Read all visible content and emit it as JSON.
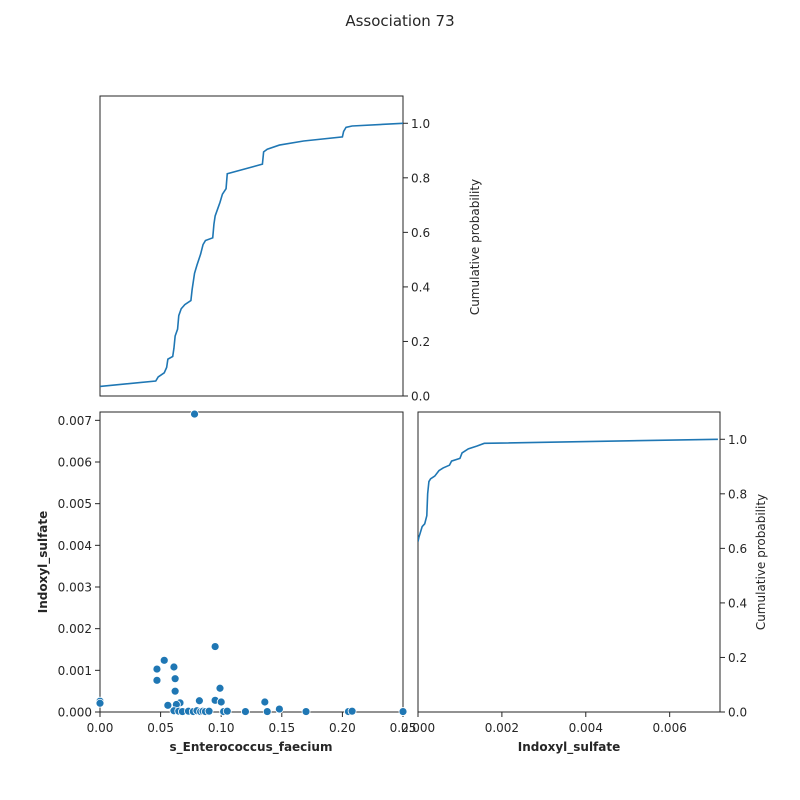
{
  "figure": {
    "title": "Association 73"
  },
  "chart_data": [
    {
      "panel": "top-left",
      "type": "line",
      "description_of_series": "empirical CDF of s_Enterococcus_faecium",
      "xlim": [
        0,
        0.25
      ],
      "ylim": [
        0,
        1.1
      ],
      "x_ticks_shown": false,
      "y_axis_side": "right",
      "ylabel": "Cumulative probability",
      "yticks": [
        0.0,
        0.2,
        0.4,
        0.6,
        0.8,
        1.0
      ],
      "ytick_labels": [
        "0.0",
        "0.2",
        "0.4",
        "0.6",
        "0.8",
        "1.0"
      ],
      "color": "#1f77b4",
      "points": [
        [
          0.0,
          0.035
        ],
        [
          0.046,
          0.055
        ],
        [
          0.048,
          0.07
        ],
        [
          0.053,
          0.085
        ],
        [
          0.055,
          0.105
        ],
        [
          0.056,
          0.135
        ],
        [
          0.06,
          0.145
        ],
        [
          0.061,
          0.175
        ],
        [
          0.062,
          0.22
        ],
        [
          0.064,
          0.245
        ],
        [
          0.065,
          0.295
        ],
        [
          0.067,
          0.32
        ],
        [
          0.07,
          0.335
        ],
        [
          0.075,
          0.35
        ],
        [
          0.076,
          0.39
        ],
        [
          0.078,
          0.45
        ],
        [
          0.08,
          0.48
        ],
        [
          0.083,
          0.52
        ],
        [
          0.085,
          0.555
        ],
        [
          0.087,
          0.57
        ],
        [
          0.093,
          0.58
        ],
        [
          0.094,
          0.63
        ],
        [
          0.095,
          0.66
        ],
        [
          0.097,
          0.685
        ],
        [
          0.099,
          0.71
        ],
        [
          0.101,
          0.74
        ],
        [
          0.104,
          0.76
        ],
        [
          0.105,
          0.815
        ],
        [
          0.134,
          0.85
        ],
        [
          0.135,
          0.895
        ],
        [
          0.138,
          0.905
        ],
        [
          0.148,
          0.92
        ],
        [
          0.168,
          0.935
        ],
        [
          0.2,
          0.95
        ],
        [
          0.201,
          0.97
        ],
        [
          0.203,
          0.985
        ],
        [
          0.208,
          0.99
        ],
        [
          0.25,
          1.0
        ]
      ]
    },
    {
      "panel": "bottom-left",
      "type": "scatter",
      "xlabel": "s_Enterococcus_faecium",
      "ylabel": "Indoxyl_sulfate",
      "xlim": [
        0,
        0.25
      ],
      "ylim": [
        0,
        0.0072
      ],
      "xticks": [
        0.0,
        0.05,
        0.1,
        0.15,
        0.2,
        0.25
      ],
      "xtick_labels": [
        "0.00",
        "0.05",
        "0.10",
        "0.15",
        "0.20",
        "0.25"
      ],
      "yticks": [
        0,
        0.001,
        0.002,
        0.003,
        0.004,
        0.005,
        0.006,
        0.007
      ],
      "ytick_labels": [
        "0.000",
        "0.001",
        "0.002",
        "0.003",
        "0.004",
        "0.005",
        "0.006",
        "0.007"
      ],
      "color": "#1f77b4",
      "points": [
        [
          0.078,
          0.00715
        ],
        [
          0.095,
          0.00157
        ],
        [
          0.053,
          0.00124
        ],
        [
          0.061,
          0.00108
        ],
        [
          0.047,
          0.00103
        ],
        [
          0.062,
          0.0008
        ],
        [
          0.047,
          0.00076
        ],
        [
          0.062,
          0.0005
        ],
        [
          0.099,
          0.00057
        ],
        [
          0.082,
          0.00027
        ],
        [
          0.095,
          0.00028
        ],
        [
          0.1,
          0.00024
        ],
        [
          0.066,
          0.00022
        ],
        [
          0.136,
          0.00024
        ],
        [
          0.0,
          0.00026
        ],
        [
          0.0,
          0.00021
        ],
        [
          0.056,
          0.00016
        ],
        [
          0.063,
          0.00018
        ],
        [
          0.148,
          7e-05
        ],
        [
          0.061,
          3e-05
        ],
        [
          0.065,
          2e-05
        ],
        [
          0.068,
          1e-05
        ],
        [
          0.073,
          2e-05
        ],
        [
          0.077,
          1e-05
        ],
        [
          0.08,
          3e-05
        ],
        [
          0.083,
          1e-05
        ],
        [
          0.085,
          2e-05
        ],
        [
          0.087,
          1e-05
        ],
        [
          0.09,
          2e-05
        ],
        [
          0.102,
          1e-05
        ],
        [
          0.105,
          2e-05
        ],
        [
          0.12,
          1e-05
        ],
        [
          0.138,
          1e-05
        ],
        [
          0.17,
          1e-05
        ],
        [
          0.205,
          1e-05
        ],
        [
          0.208,
          2e-05
        ],
        [
          0.25,
          1e-05
        ]
      ]
    },
    {
      "panel": "bottom-right",
      "type": "line",
      "description_of_series": "empirical CDF of Indoxyl_sulfate",
      "xlabel": "Indoxyl_sulfate",
      "xlim": [
        0,
        0.0072
      ],
      "ylim": [
        0,
        1.1
      ],
      "xticks": [
        0,
        0.002,
        0.004,
        0.006
      ],
      "xtick_labels": [
        "0.000",
        "0.002",
        "0.004",
        "0.006"
      ],
      "y_axis_side": "right",
      "ylabel": "Cumulative probability",
      "yticks": [
        0.0,
        0.2,
        0.4,
        0.6,
        0.8,
        1.0
      ],
      "ytick_labels": [
        "0.0",
        "0.2",
        "0.4",
        "0.6",
        "0.8",
        "1.0"
      ],
      "color": "#1f77b4",
      "points": [
        [
          0.0,
          0.625
        ],
        [
          2e-05,
          0.64
        ],
        [
          5e-05,
          0.655
        ],
        [
          0.0001,
          0.68
        ],
        [
          0.00016,
          0.69
        ],
        [
          0.00021,
          0.72
        ],
        [
          0.00023,
          0.8
        ],
        [
          0.00026,
          0.845
        ],
        [
          0.0003,
          0.855
        ],
        [
          0.0004,
          0.865
        ],
        [
          0.0005,
          0.885
        ],
        [
          0.0006,
          0.895
        ],
        [
          0.00075,
          0.905
        ],
        [
          0.0008,
          0.92
        ],
        [
          0.001,
          0.93
        ],
        [
          0.00105,
          0.95
        ],
        [
          0.0012,
          0.965
        ],
        [
          0.0014,
          0.975
        ],
        [
          0.00158,
          0.985
        ],
        [
          0.00715,
          1.0
        ]
      ]
    }
  ]
}
